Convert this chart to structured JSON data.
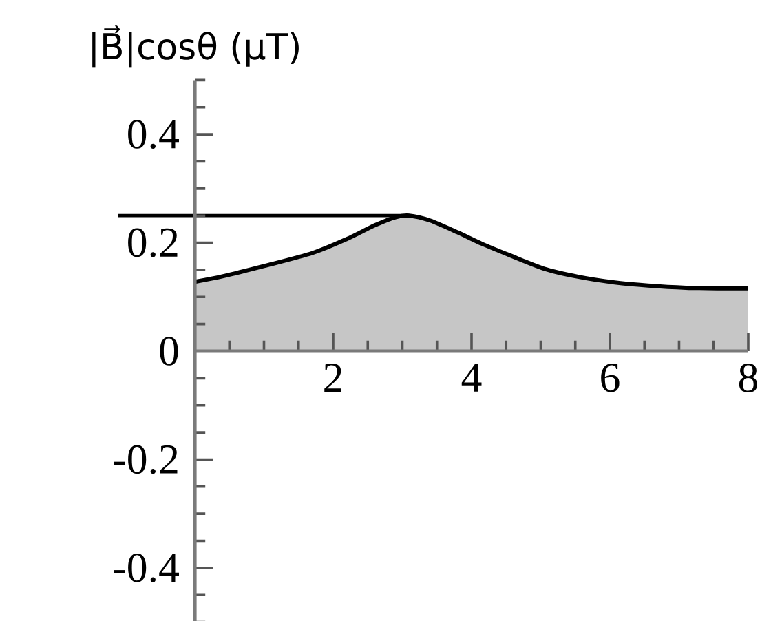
{
  "chart_data": {
    "type": "area",
    "ylabel": "|B⃗|cosθ (μT)",
    "xlim": [
      0,
      8
    ],
    "ylim": [
      -0.5,
      0.5
    ],
    "xticks": [
      {
        "value": 0.5,
        "label": null
      },
      {
        "value": 1,
        "label": null
      },
      {
        "value": 1.5,
        "label": null
      },
      2,
      {
        "value": 2.5,
        "label": null
      },
      {
        "value": 3,
        "label": null
      },
      {
        "value": 3.5,
        "label": null
      },
      4,
      {
        "value": 4.5,
        "label": null
      },
      {
        "value": 5,
        "label": null
      },
      {
        "value": 5.5,
        "label": null
      },
      6,
      {
        "value": 6.5,
        "label": null
      },
      {
        "value": 7,
        "label": null
      },
      {
        "value": 7.5,
        "label": null
      },
      8
    ],
    "yticks": [
      {
        "value": -0.5,
        "label": null
      },
      {
        "value": -0.45,
        "label": null
      },
      -0.4,
      {
        "value": -0.35,
        "label": null
      },
      {
        "value": -0.3,
        "label": null
      },
      {
        "value": -0.25,
        "label": null
      },
      -0.2,
      {
        "value": -0.15,
        "label": null
      },
      {
        "value": -0.1,
        "label": null
      },
      {
        "value": -0.05,
        "label": null
      },
      0,
      {
        "value": 0.05,
        "label": null
      },
      {
        "value": 0.1,
        "label": null
      },
      {
        "value": 0.15,
        "label": null
      },
      0.2,
      {
        "value": 0.25,
        "label": null
      },
      {
        "value": 0.3,
        "label": null
      },
      {
        "value": 0.35,
        "label": null
      },
      0.4,
      {
        "value": 0.45,
        "label": null
      },
      {
        "value": 0.5,
        "label": null
      }
    ],
    "x": [
      0,
      0.4,
      1.0,
      1.7,
      2.2,
      2.6,
      2.9,
      3.1,
      3.4,
      3.8,
      4.15,
      4.55,
      5.05,
      5.55,
      6.05,
      6.55,
      7.1,
      7.6,
      8.0
    ],
    "values": [
      0.128,
      0.138,
      0.157,
      0.181,
      0.207,
      0.232,
      0.247,
      0.25,
      0.241,
      0.219,
      0.198,
      0.177,
      0.152,
      0.137,
      0.127,
      0.121,
      0.117,
      0.116,
      0.116
    ],
    "color": "#c6c6c6",
    "ref_lines": [
      {
        "axis": "y",
        "value": 0.25,
        "color": "#000000"
      }
    ]
  }
}
